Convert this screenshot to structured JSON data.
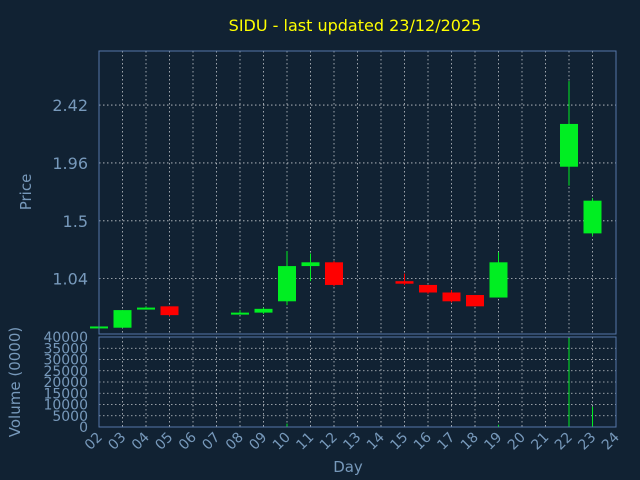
{
  "chart_data": {
    "type": "candlestick",
    "title": "SIDU - last updated 23/12/2025",
    "xlabel": "Day",
    "ylabel": "Price",
    "volume_label": "Volume (0000)",
    "x_ticks": [
      "02",
      "03",
      "04",
      "05",
      "06",
      "07",
      "08",
      "09",
      "10",
      "11",
      "12",
      "13",
      "14",
      "15",
      "16",
      "17",
      "18",
      "19",
      "20",
      "21",
      "22",
      "23",
      "24"
    ],
    "price_ticks": [
      1.04,
      1.5,
      1.96,
      2.42
    ],
    "price_tick_labels": [
      "1.04",
      "1.5",
      "1.96",
      "2.42"
    ],
    "price_range": [
      0.6,
      2.85
    ],
    "volume_ticks": [
      0,
      5000,
      10000,
      15000,
      20000,
      25000,
      30000,
      35000,
      40000
    ],
    "volume_range": [
      0,
      40000
    ],
    "grid": true,
    "colors": {
      "background": "#112233",
      "title": "#ffff00",
      "axis_text": "#7799bb",
      "frame": "#5577aa",
      "grid": "#ffffff",
      "up": "#00ee22",
      "down": "#ff0000"
    },
    "candles": [
      {
        "day": "02",
        "open": 0.66,
        "high": 0.66,
        "low": 0.66,
        "close": 0.66
      },
      {
        "day": "03",
        "open": 0.65,
        "high": 0.79,
        "low": 0.65,
        "close": 0.79
      },
      {
        "day": "04",
        "open": 0.81,
        "high": 0.82,
        "low": 0.8,
        "close": 0.81
      },
      {
        "day": "05",
        "open": 0.82,
        "high": 0.82,
        "low": 0.74,
        "close": 0.75
      },
      {
        "day": "08",
        "open": 0.77,
        "high": 0.79,
        "low": 0.76,
        "close": 0.77
      },
      {
        "day": "09",
        "open": 0.77,
        "high": 0.81,
        "low": 0.76,
        "close": 0.8
      },
      {
        "day": "10",
        "open": 0.86,
        "high": 1.26,
        "low": 0.83,
        "close": 1.14
      },
      {
        "day": "11",
        "open": 1.14,
        "high": 1.24,
        "low": 1.02,
        "close": 1.17
      },
      {
        "day": "12",
        "open": 1.17,
        "high": 1.18,
        "low": 0.98,
        "close": 0.99
      },
      {
        "day": "15",
        "open": 1.02,
        "high": 1.08,
        "low": 0.99,
        "close": 1.0
      },
      {
        "day": "16",
        "open": 0.99,
        "high": 0.99,
        "low": 0.92,
        "close": 0.93
      },
      {
        "day": "17",
        "open": 0.93,
        "high": 0.95,
        "low": 0.85,
        "close": 0.86
      },
      {
        "day": "18",
        "open": 0.91,
        "high": 0.91,
        "low": 0.82,
        "close": 0.82
      },
      {
        "day": "19",
        "open": 0.89,
        "high": 1.25,
        "low": 0.89,
        "close": 1.17
      },
      {
        "day": "22",
        "open": 1.93,
        "high": 2.61,
        "low": 1.78,
        "close": 2.27
      },
      {
        "day": "23",
        "open": 1.4,
        "high": 1.68,
        "low": 1.38,
        "close": 1.66
      }
    ],
    "volume": [
      {
        "day": "02",
        "value": 0
      },
      {
        "day": "03",
        "value": 0
      },
      {
        "day": "04",
        "value": 0
      },
      {
        "day": "05",
        "value": 0
      },
      {
        "day": "08",
        "value": 0
      },
      {
        "day": "09",
        "value": 0
      },
      {
        "day": "10",
        "value": 1500
      },
      {
        "day": "11",
        "value": 200
      },
      {
        "day": "12",
        "value": 0
      },
      {
        "day": "15",
        "value": 0
      },
      {
        "day": "16",
        "value": 0
      },
      {
        "day": "17",
        "value": 0
      },
      {
        "day": "18",
        "value": 0
      },
      {
        "day": "19",
        "value": 1000
      },
      {
        "day": "22",
        "value": 39500
      },
      {
        "day": "23",
        "value": 9000
      }
    ]
  }
}
